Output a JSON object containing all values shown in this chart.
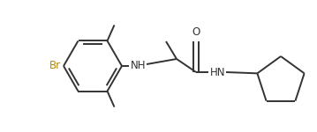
{
  "bg_color": "#ffffff",
  "line_color": "#333333",
  "label_color_br": "#b8860b",
  "label_color_main": "#333333",
  "line_width": 1.4,
  "font_size": 8.5,
  "figsize": [
    3.59,
    1.5
  ],
  "dpi": 100,
  "xlim": [
    0,
    359
  ],
  "ylim": [
    0,
    150
  ]
}
